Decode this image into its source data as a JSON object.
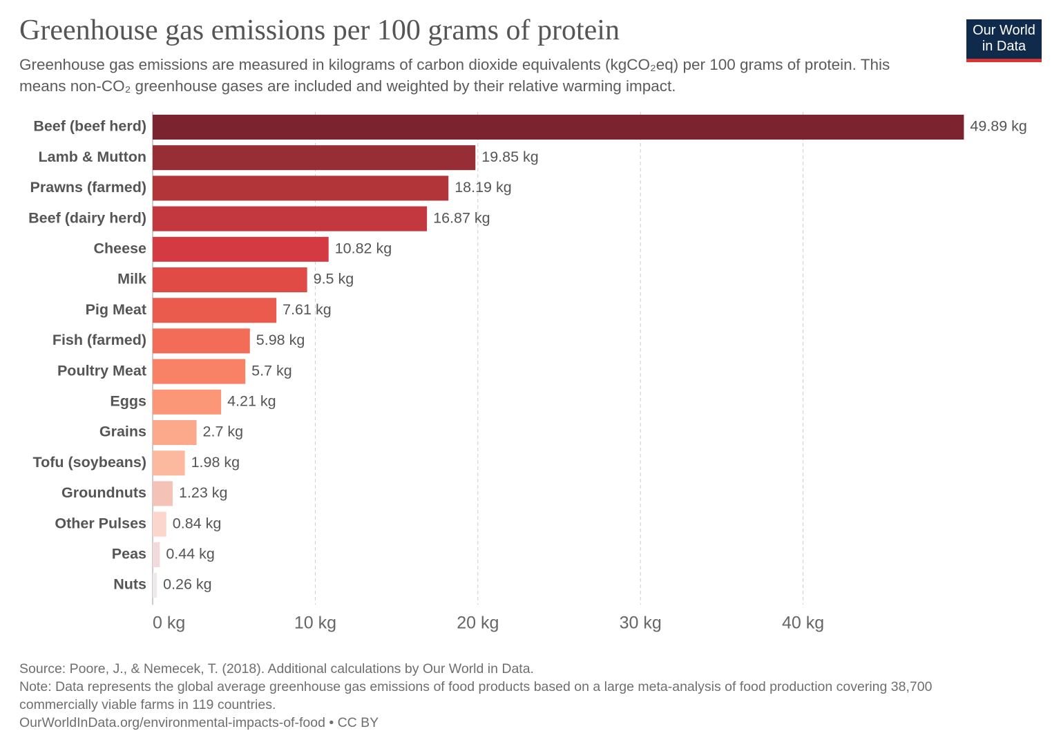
{
  "chart_data": {
    "type": "bar",
    "orientation": "horizontal",
    "title": "Greenhouse gas emissions per 100 grams of protein",
    "subtitle": "Greenhouse gas emissions are measured in kilograms of carbon dioxide equivalents (kgCO₂eq) per 100 grams of protein. This means non-CO₂ greenhouse gases are included and weighted by their relative warming impact.",
    "logo": [
      "Our World",
      "in Data"
    ],
    "categories": [
      "Beef (beef herd)",
      "Lamb & Mutton",
      "Prawns (farmed)",
      "Beef (dairy herd)",
      "Cheese",
      "Milk",
      "Pig Meat",
      "Fish (farmed)",
      "Poultry Meat",
      "Eggs",
      "Grains",
      "Tofu (soybeans)",
      "Groundnuts",
      "Other Pulses",
      "Peas",
      "Nuts"
    ],
    "values": [
      49.89,
      19.85,
      18.19,
      16.87,
      10.82,
      9.5,
      7.61,
      5.98,
      5.7,
      4.21,
      2.7,
      1.98,
      1.23,
      0.84,
      0.44,
      0.26
    ],
    "value_labels": [
      "49.89 kg",
      "19.85 kg",
      "18.19 kg",
      "16.87 kg",
      "10.82 kg",
      "9.5 kg",
      "7.61 kg",
      "5.98 kg",
      "5.7 kg",
      "4.21 kg",
      "2.7 kg",
      "1.98 kg",
      "1.23 kg",
      "0.84 kg",
      "0.44 kg",
      "0.26 kg"
    ],
    "colors": [
      "#7b2430",
      "#982e35",
      "#b2353a",
      "#c2383e",
      "#d43a42",
      "#e04b45",
      "#ea5a4d",
      "#f26c58",
      "#f88266",
      "#fb9676",
      "#fca98b",
      "#fdb8a0",
      "#f5c2b8",
      "#fad6cc",
      "#f1d9dc",
      "#efeaea"
    ],
    "xlim": [
      0,
      50
    ],
    "xticks": [
      {
        "value": 0,
        "label": "0 kg"
      },
      {
        "value": 10,
        "label": "10 kg"
      },
      {
        "value": 20,
        "label": "20 kg"
      },
      {
        "value": 30,
        "label": "30 kg"
      },
      {
        "value": 40,
        "label": "40 kg"
      }
    ],
    "grid": true,
    "source": "Source: Poore, J., & Nemecek, T. (2018). Additional calculations by Our World in Data.",
    "note": "Note: Data represents the global average greenhouse gas emissions of food products based on a large meta-analysis of food production covering 38,700 commercially viable farms in 119 countries.",
    "url": "OurWorldInData.org/environmental-impacts-of-food • CC BY"
  }
}
